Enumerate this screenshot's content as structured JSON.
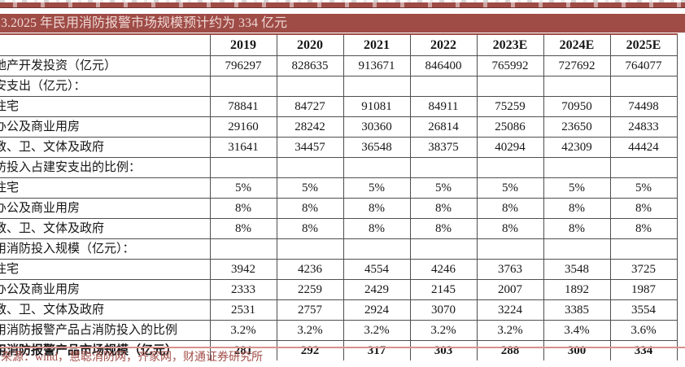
{
  "title": "3.2025 年民用消防报警市场规模预计约为 334 亿元",
  "source": "来源：wind，慧聪消防网，齐家网，财通证券研究所",
  "colors": {
    "accent_red": "#9f4b46",
    "title_text": "#eed8d4",
    "bottom_rule": "#d9918b",
    "source_text": "#a34f49",
    "border_dark": "#4f4f4f"
  },
  "table": {
    "years": [
      "2019",
      "2020",
      "2021",
      "2022",
      "2023E",
      "2024E",
      "2025E"
    ],
    "rows": [
      {
        "label": "地产开发投资（亿元）",
        "bold": false,
        "values": [
          "796297",
          "828635",
          "913671",
          "846400",
          "765992",
          "727692",
          "764077"
        ]
      },
      {
        "label": "安支出（亿元）：",
        "bold": false,
        "values": [
          "",
          "",
          "",
          "",
          "",
          "",
          ""
        ]
      },
      {
        "label": "住宅",
        "bold": false,
        "values": [
          "78841",
          "84727",
          "91081",
          "84911",
          "75259",
          "70950",
          "74498"
        ]
      },
      {
        "label": "办公及商业用房",
        "bold": false,
        "values": [
          "29160",
          "28242",
          "30360",
          "26814",
          "25086",
          "23650",
          "24833"
        ]
      },
      {
        "label": "教、卫、文体及政府",
        "bold": false,
        "values": [
          "31641",
          "34457",
          "36548",
          "38375",
          "40294",
          "42309",
          "44424"
        ]
      },
      {
        "label": "防投入占建安支出的比例：",
        "bold": false,
        "values": [
          "",
          "",
          "",
          "",
          "",
          "",
          ""
        ]
      },
      {
        "label": "住宅",
        "bold": false,
        "values": [
          "5%",
          "5%",
          "5%",
          "5%",
          "5%",
          "5%",
          "5%"
        ]
      },
      {
        "label": "办公及商业用房",
        "bold": false,
        "values": [
          "8%",
          "8%",
          "8%",
          "8%",
          "8%",
          "8%",
          "8%"
        ]
      },
      {
        "label": "教、卫、文体及政府",
        "bold": false,
        "values": [
          "8%",
          "8%",
          "8%",
          "8%",
          "8%",
          "8%",
          "8%"
        ]
      },
      {
        "label": "用消防投入规模（亿元）：",
        "bold": false,
        "values": [
          "",
          "",
          "",
          "",
          "",
          "",
          ""
        ]
      },
      {
        "label": "住宅",
        "bold": false,
        "values": [
          "3942",
          "4236",
          "4554",
          "4246",
          "3763",
          "3548",
          "3725"
        ]
      },
      {
        "label": "办公及商业用房",
        "bold": false,
        "values": [
          "2333",
          "2259",
          "2429",
          "2145",
          "2007",
          "1892",
          "1987"
        ]
      },
      {
        "label": "教、卫、文体及政府",
        "bold": false,
        "values": [
          "2531",
          "2757",
          "2924",
          "3070",
          "3224",
          "3385",
          "3554"
        ]
      },
      {
        "label": "用消防报警产品占消防投入的比例",
        "bold": false,
        "values": [
          "3.2%",
          "3.2%",
          "3.2%",
          "3.2%",
          "3.2%",
          "3.4%",
          "3.6%"
        ]
      },
      {
        "label": "用消防报警产品市场规模（亿元）",
        "bold": true,
        "values": [
          "281",
          "292",
          "317",
          "303",
          "288",
          "300",
          "334"
        ]
      }
    ]
  }
}
